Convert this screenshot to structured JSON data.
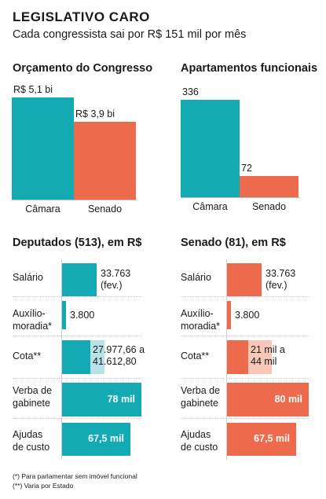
{
  "header": {
    "title": "LEGISLATIVO CARO",
    "subtitle": "Cada congressista sai por R$ 151 mil por mês"
  },
  "colors": {
    "camara": "#13aab4",
    "senado": "#ee6a4c",
    "camara_light": "#b8e3e6",
    "senado_light": "#f8c7b7"
  },
  "chart_data": [
    {
      "type": "bar",
      "title": "Orçamento do Congresso",
      "categories": [
        "Câmara",
        "Senado"
      ],
      "values": [
        5.1,
        3.9
      ],
      "labels": [
        "R$ 5,1 bi",
        "R$ 3,9 bi"
      ],
      "unit": "R$ bi",
      "ylim": [
        0,
        5.1
      ]
    },
    {
      "type": "bar",
      "title": "Apartamentos funcionais",
      "categories": [
        "Câmara",
        "Senado"
      ],
      "values": [
        336,
        72
      ],
      "labels": [
        "336",
        "72"
      ],
      "ylim": [
        0,
        336
      ]
    },
    {
      "type": "bar",
      "orientation": "horizontal",
      "title": "Deputados (513), em R$",
      "categories": [
        "Salário",
        "Auxílio-\nmoradia*",
        "Cota**",
        "Verba de\ngabinete",
        "Ajudas\nde custo"
      ],
      "values": [
        33763,
        3800,
        27977.66,
        78000,
        67500
      ],
      "range_max": [
        null,
        null,
        41612.8,
        null,
        null
      ],
      "labels": [
        "33.763\n(fev.)",
        "3.800",
        "27.977,66 a\n41.612,80",
        "78 mil",
        "67,5 mil"
      ],
      "xlim": [
        0,
        78000
      ]
    },
    {
      "type": "bar",
      "orientation": "horizontal",
      "title": "Senado (81), em R$",
      "categories": [
        "Salário",
        "Auxílio-\nmoradia*",
        "Cota**",
        "Verba de\ngabinete",
        "Ajudas\nde custo"
      ],
      "values": [
        33763,
        3800,
        21000,
        80000,
        67500
      ],
      "range_max": [
        null,
        null,
        44000,
        null,
        null
      ],
      "labels": [
        "33.763\n(fev.)",
        "3.800",
        "21 mil a\n44 mil",
        "80 mil",
        "67,5 mil"
      ],
      "xlim": [
        0,
        80000
      ]
    }
  ],
  "notes": [
    "(*) Para parlamentar sem imóvel funcional",
    "(**) Varia por Estado"
  ]
}
